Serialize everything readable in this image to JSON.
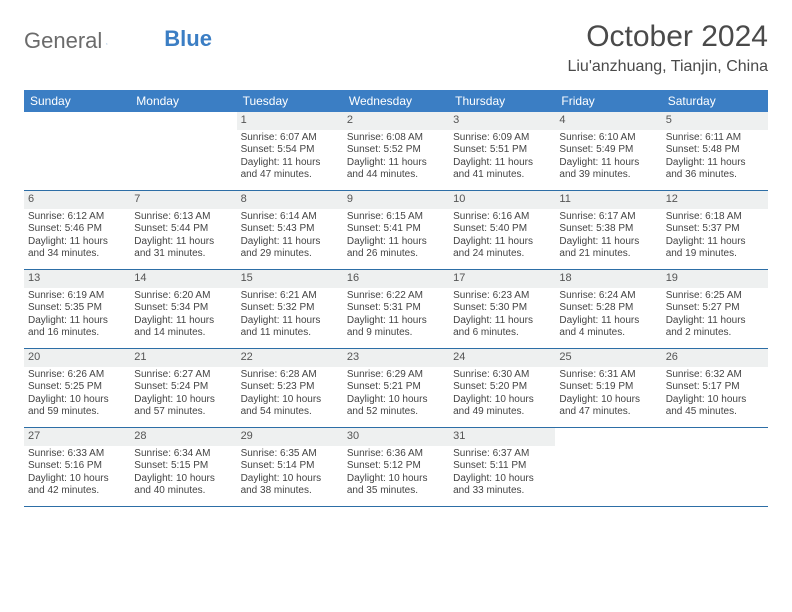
{
  "logo": {
    "text1": "General",
    "text2": "Blue"
  },
  "header": {
    "title": "October 2024",
    "location": "Liu'anzhuang, Tianjin, China"
  },
  "colors": {
    "header_bg": "#3b7ec4",
    "header_text": "#ffffff",
    "daynum_bg": "#eef0f0",
    "row_border": "#2d6ea6",
    "body_text": "#444444",
    "title_text": "#4a4a4a",
    "logo_gray": "#6b6b6b",
    "logo_blue": "#3b7ec4"
  },
  "dayNames": [
    "Sunday",
    "Monday",
    "Tuesday",
    "Wednesday",
    "Thursday",
    "Friday",
    "Saturday"
  ],
  "weeks": [
    [
      null,
      null,
      {
        "n": "1",
        "sr": "Sunrise: 6:07 AM",
        "ss": "Sunset: 5:54 PM",
        "dl": "Daylight: 11 hours and 47 minutes."
      },
      {
        "n": "2",
        "sr": "Sunrise: 6:08 AM",
        "ss": "Sunset: 5:52 PM",
        "dl": "Daylight: 11 hours and 44 minutes."
      },
      {
        "n": "3",
        "sr": "Sunrise: 6:09 AM",
        "ss": "Sunset: 5:51 PM",
        "dl": "Daylight: 11 hours and 41 minutes."
      },
      {
        "n": "4",
        "sr": "Sunrise: 6:10 AM",
        "ss": "Sunset: 5:49 PM",
        "dl": "Daylight: 11 hours and 39 minutes."
      },
      {
        "n": "5",
        "sr": "Sunrise: 6:11 AM",
        "ss": "Sunset: 5:48 PM",
        "dl": "Daylight: 11 hours and 36 minutes."
      }
    ],
    [
      {
        "n": "6",
        "sr": "Sunrise: 6:12 AM",
        "ss": "Sunset: 5:46 PM",
        "dl": "Daylight: 11 hours and 34 minutes."
      },
      {
        "n": "7",
        "sr": "Sunrise: 6:13 AM",
        "ss": "Sunset: 5:44 PM",
        "dl": "Daylight: 11 hours and 31 minutes."
      },
      {
        "n": "8",
        "sr": "Sunrise: 6:14 AM",
        "ss": "Sunset: 5:43 PM",
        "dl": "Daylight: 11 hours and 29 minutes."
      },
      {
        "n": "9",
        "sr": "Sunrise: 6:15 AM",
        "ss": "Sunset: 5:41 PM",
        "dl": "Daylight: 11 hours and 26 minutes."
      },
      {
        "n": "10",
        "sr": "Sunrise: 6:16 AM",
        "ss": "Sunset: 5:40 PM",
        "dl": "Daylight: 11 hours and 24 minutes."
      },
      {
        "n": "11",
        "sr": "Sunrise: 6:17 AM",
        "ss": "Sunset: 5:38 PM",
        "dl": "Daylight: 11 hours and 21 minutes."
      },
      {
        "n": "12",
        "sr": "Sunrise: 6:18 AM",
        "ss": "Sunset: 5:37 PM",
        "dl": "Daylight: 11 hours and 19 minutes."
      }
    ],
    [
      {
        "n": "13",
        "sr": "Sunrise: 6:19 AM",
        "ss": "Sunset: 5:35 PM",
        "dl": "Daylight: 11 hours and 16 minutes."
      },
      {
        "n": "14",
        "sr": "Sunrise: 6:20 AM",
        "ss": "Sunset: 5:34 PM",
        "dl": "Daylight: 11 hours and 14 minutes."
      },
      {
        "n": "15",
        "sr": "Sunrise: 6:21 AM",
        "ss": "Sunset: 5:32 PM",
        "dl": "Daylight: 11 hours and 11 minutes."
      },
      {
        "n": "16",
        "sr": "Sunrise: 6:22 AM",
        "ss": "Sunset: 5:31 PM",
        "dl": "Daylight: 11 hours and 9 minutes."
      },
      {
        "n": "17",
        "sr": "Sunrise: 6:23 AM",
        "ss": "Sunset: 5:30 PM",
        "dl": "Daylight: 11 hours and 6 minutes."
      },
      {
        "n": "18",
        "sr": "Sunrise: 6:24 AM",
        "ss": "Sunset: 5:28 PM",
        "dl": "Daylight: 11 hours and 4 minutes."
      },
      {
        "n": "19",
        "sr": "Sunrise: 6:25 AM",
        "ss": "Sunset: 5:27 PM",
        "dl": "Daylight: 11 hours and 2 minutes."
      }
    ],
    [
      {
        "n": "20",
        "sr": "Sunrise: 6:26 AM",
        "ss": "Sunset: 5:25 PM",
        "dl": "Daylight: 10 hours and 59 minutes."
      },
      {
        "n": "21",
        "sr": "Sunrise: 6:27 AM",
        "ss": "Sunset: 5:24 PM",
        "dl": "Daylight: 10 hours and 57 minutes."
      },
      {
        "n": "22",
        "sr": "Sunrise: 6:28 AM",
        "ss": "Sunset: 5:23 PM",
        "dl": "Daylight: 10 hours and 54 minutes."
      },
      {
        "n": "23",
        "sr": "Sunrise: 6:29 AM",
        "ss": "Sunset: 5:21 PM",
        "dl": "Daylight: 10 hours and 52 minutes."
      },
      {
        "n": "24",
        "sr": "Sunrise: 6:30 AM",
        "ss": "Sunset: 5:20 PM",
        "dl": "Daylight: 10 hours and 49 minutes."
      },
      {
        "n": "25",
        "sr": "Sunrise: 6:31 AM",
        "ss": "Sunset: 5:19 PM",
        "dl": "Daylight: 10 hours and 47 minutes."
      },
      {
        "n": "26",
        "sr": "Sunrise: 6:32 AM",
        "ss": "Sunset: 5:17 PM",
        "dl": "Daylight: 10 hours and 45 minutes."
      }
    ],
    [
      {
        "n": "27",
        "sr": "Sunrise: 6:33 AM",
        "ss": "Sunset: 5:16 PM",
        "dl": "Daylight: 10 hours and 42 minutes."
      },
      {
        "n": "28",
        "sr": "Sunrise: 6:34 AM",
        "ss": "Sunset: 5:15 PM",
        "dl": "Daylight: 10 hours and 40 minutes."
      },
      {
        "n": "29",
        "sr": "Sunrise: 6:35 AM",
        "ss": "Sunset: 5:14 PM",
        "dl": "Daylight: 10 hours and 38 minutes."
      },
      {
        "n": "30",
        "sr": "Sunrise: 6:36 AM",
        "ss": "Sunset: 5:12 PM",
        "dl": "Daylight: 10 hours and 35 minutes."
      },
      {
        "n": "31",
        "sr": "Sunrise: 6:37 AM",
        "ss": "Sunset: 5:11 PM",
        "dl": "Daylight: 10 hours and 33 minutes."
      },
      null,
      null
    ]
  ]
}
